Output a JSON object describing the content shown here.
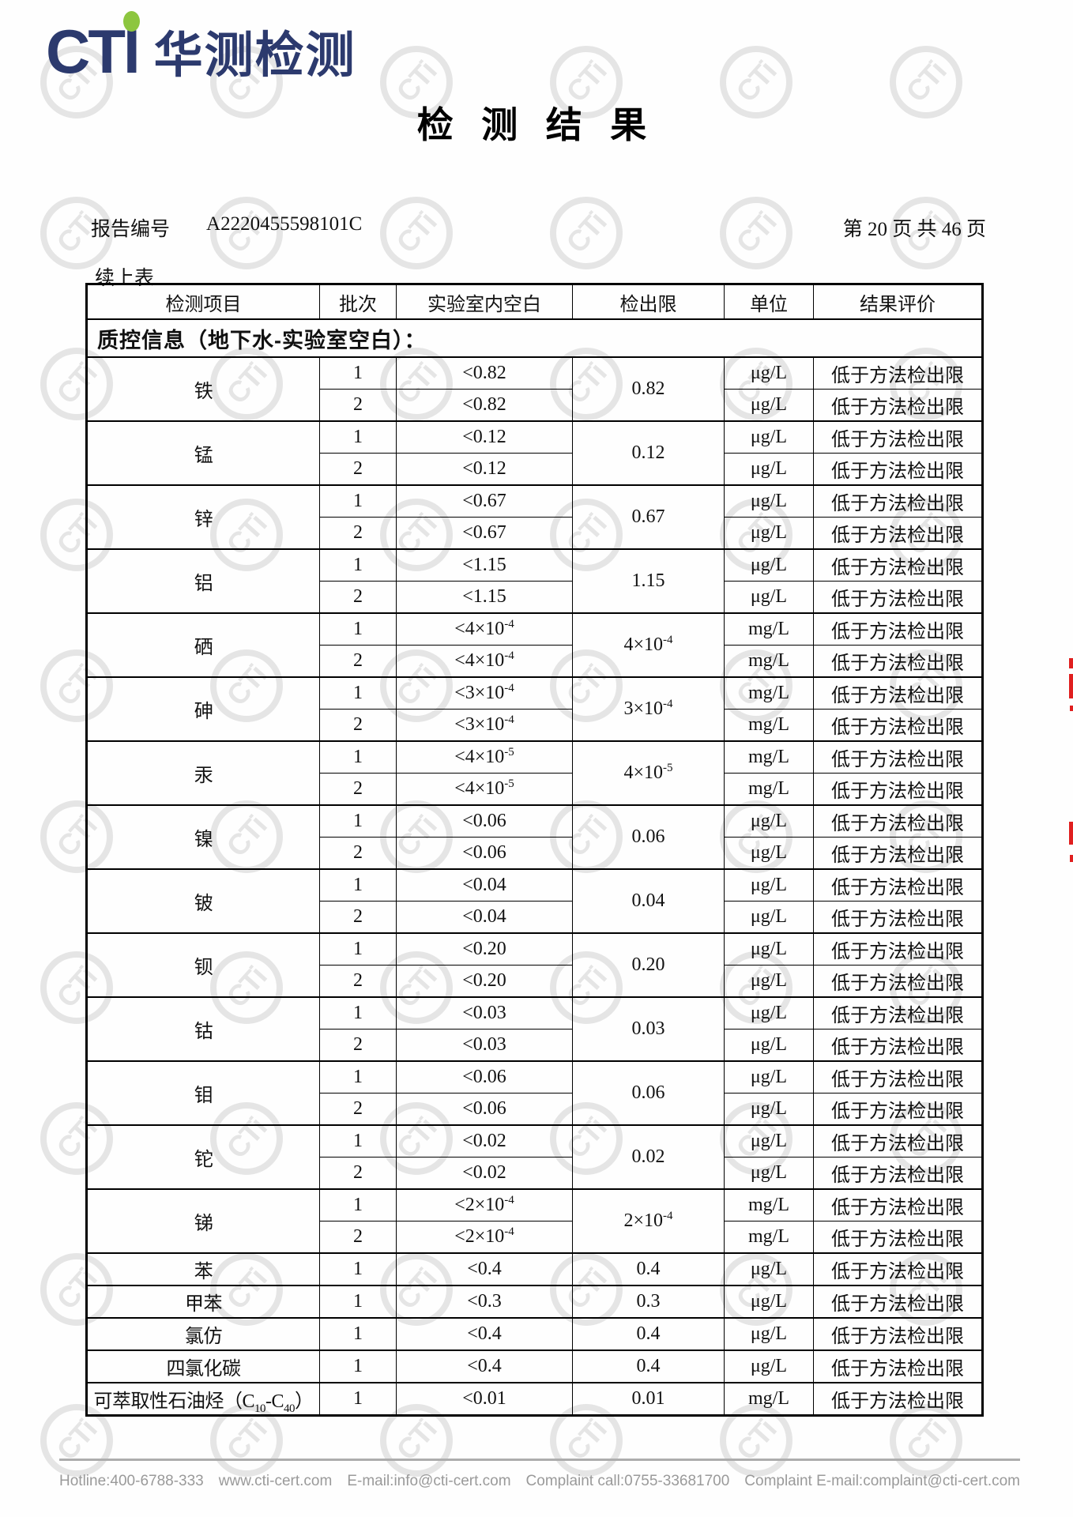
{
  "brand": {
    "logo_text": "CTI",
    "logo_cn": "华测检测",
    "logo_color": "#2c3a6e",
    "dot_color": "#8dc63f"
  },
  "page_title": "检  测  结  果",
  "report_header": {
    "label": "报告编号",
    "number": "A2220455598101C",
    "page_info": "第 20 页 共 46 页"
  },
  "continuation_note": "续上表",
  "watermark_text": "CTi",
  "qc_table": {
    "caption": "质控信息（地下水-实验室空白）：",
    "headers": [
      "检测项目",
      "批次",
      "实验室内空白",
      "检出限",
      "单位",
      "结果评价"
    ],
    "groups": [
      {
        "item": "铁",
        "limit": "0.82",
        "rows": [
          {
            "batch": "1",
            "blank": "<0.82",
            "unit": "μg/L",
            "evaluation": "低于方法检出限"
          },
          {
            "batch": "2",
            "blank": "<0.82",
            "unit": "μg/L",
            "evaluation": "低于方法检出限"
          }
        ]
      },
      {
        "item": "锰",
        "limit": "0.12",
        "rows": [
          {
            "batch": "1",
            "blank": "<0.12",
            "unit": "μg/L",
            "evaluation": "低于方法检出限"
          },
          {
            "batch": "2",
            "blank": "<0.12",
            "unit": "μg/L",
            "evaluation": "低于方法检出限"
          }
        ]
      },
      {
        "item": "锌",
        "limit": "0.67",
        "rows": [
          {
            "batch": "1",
            "blank": "<0.67",
            "unit": "μg/L",
            "evaluation": "低于方法检出限"
          },
          {
            "batch": "2",
            "blank": "<0.67",
            "unit": "μg/L",
            "evaluation": "低于方法检出限"
          }
        ]
      },
      {
        "item": "铝",
        "limit": "1.15",
        "rows": [
          {
            "batch": "1",
            "blank": "<1.15",
            "unit": "μg/L",
            "evaluation": "低于方法检出限"
          },
          {
            "batch": "2",
            "blank": "<1.15",
            "unit": "μg/L",
            "evaluation": "低于方法检出限"
          }
        ]
      },
      {
        "item": "硒",
        "limit": "4×10^{-4}",
        "rows": [
          {
            "batch": "1",
            "blank": "<4×10^{-4}",
            "unit": "mg/L",
            "evaluation": "低于方法检出限"
          },
          {
            "batch": "2",
            "blank": "<4×10^{-4}",
            "unit": "mg/L",
            "evaluation": "低于方法检出限"
          }
        ]
      },
      {
        "item": "砷",
        "limit": "3×10^{-4}",
        "rows": [
          {
            "batch": "1",
            "blank": "<3×10^{-4}",
            "unit": "mg/L",
            "evaluation": "低于方法检出限"
          },
          {
            "batch": "2",
            "blank": "<3×10^{-4}",
            "unit": "mg/L",
            "evaluation": "低于方法检出限"
          }
        ]
      },
      {
        "item": "汞",
        "limit": "4×10^{-5}",
        "rows": [
          {
            "batch": "1",
            "blank": "<4×10^{-5}",
            "unit": "mg/L",
            "evaluation": "低于方法检出限"
          },
          {
            "batch": "2",
            "blank": "<4×10^{-5}",
            "unit": "mg/L",
            "evaluation": "低于方法检出限"
          }
        ]
      },
      {
        "item": "镍",
        "limit": "0.06",
        "rows": [
          {
            "batch": "1",
            "blank": "<0.06",
            "unit": "μg/L",
            "evaluation": "低于方法检出限"
          },
          {
            "batch": "2",
            "blank": "<0.06",
            "unit": "μg/L",
            "evaluation": "低于方法检出限"
          }
        ]
      },
      {
        "item": "铍",
        "limit": "0.04",
        "rows": [
          {
            "batch": "1",
            "blank": "<0.04",
            "unit": "μg/L",
            "evaluation": "低于方法检出限"
          },
          {
            "batch": "2",
            "blank": "<0.04",
            "unit": "μg/L",
            "evaluation": "低于方法检出限"
          }
        ]
      },
      {
        "item": "钡",
        "limit": "0.20",
        "rows": [
          {
            "batch": "1",
            "blank": "<0.20",
            "unit": "μg/L",
            "evaluation": "低于方法检出限"
          },
          {
            "batch": "2",
            "blank": "<0.20",
            "unit": "μg/L",
            "evaluation": "低于方法检出限"
          }
        ]
      },
      {
        "item": "钴",
        "limit": "0.03",
        "rows": [
          {
            "batch": "1",
            "blank": "<0.03",
            "unit": "μg/L",
            "evaluation": "低于方法检出限"
          },
          {
            "batch": "2",
            "blank": "<0.03",
            "unit": "μg/L",
            "evaluation": "低于方法检出限"
          }
        ]
      },
      {
        "item": "钼",
        "limit": "0.06",
        "rows": [
          {
            "batch": "1",
            "blank": "<0.06",
            "unit": "μg/L",
            "evaluation": "低于方法检出限"
          },
          {
            "batch": "2",
            "blank": "<0.06",
            "unit": "μg/L",
            "evaluation": "低于方法检出限"
          }
        ]
      },
      {
        "item": "铊",
        "limit": "0.02",
        "rows": [
          {
            "batch": "1",
            "blank": "<0.02",
            "unit": "μg/L",
            "evaluation": "低于方法检出限"
          },
          {
            "batch": "2",
            "blank": "<0.02",
            "unit": "μg/L",
            "evaluation": "低于方法检出限"
          }
        ]
      },
      {
        "item": "锑",
        "limit": "2×10^{-4}",
        "rows": [
          {
            "batch": "1",
            "blank": "<2×10^{-4}",
            "unit": "mg/L",
            "evaluation": "低于方法检出限"
          },
          {
            "batch": "2",
            "blank": "<2×10^{-4}",
            "unit": "mg/L",
            "evaluation": "低于方法检出限"
          }
        ]
      },
      {
        "item": "苯",
        "limit": "0.4",
        "rows": [
          {
            "batch": "1",
            "blank": "<0.4",
            "unit": "μg/L",
            "evaluation": "低于方法检出限"
          }
        ]
      },
      {
        "item": "甲苯",
        "limit": "0.3",
        "rows": [
          {
            "batch": "1",
            "blank": "<0.3",
            "unit": "μg/L",
            "evaluation": "低于方法检出限"
          }
        ]
      },
      {
        "item": "氯仿",
        "limit": "0.4",
        "rows": [
          {
            "batch": "1",
            "blank": "<0.4",
            "unit": "μg/L",
            "evaluation": "低于方法检出限"
          }
        ]
      },
      {
        "item": "四氯化碳",
        "limit": "0.4",
        "rows": [
          {
            "batch": "1",
            "blank": "<0.4",
            "unit": "μg/L",
            "evaluation": "低于方法检出限"
          }
        ]
      },
      {
        "item": "可萃取性石油烃（C_{10}-C_{40}）",
        "limit": "0.01",
        "rows": [
          {
            "batch": "1",
            "blank": "<0.01",
            "unit": "mg/L",
            "evaluation": "低于方法检出限"
          }
        ]
      }
    ]
  },
  "footer": {
    "items": [
      "Hotline:400-6788-333",
      "www.cti-cert.com",
      "E-mail:info@cti-cert.com",
      "Complaint call:0755-33681700",
      "Complaint E-mail:complaint@cti-cert.com"
    ]
  }
}
